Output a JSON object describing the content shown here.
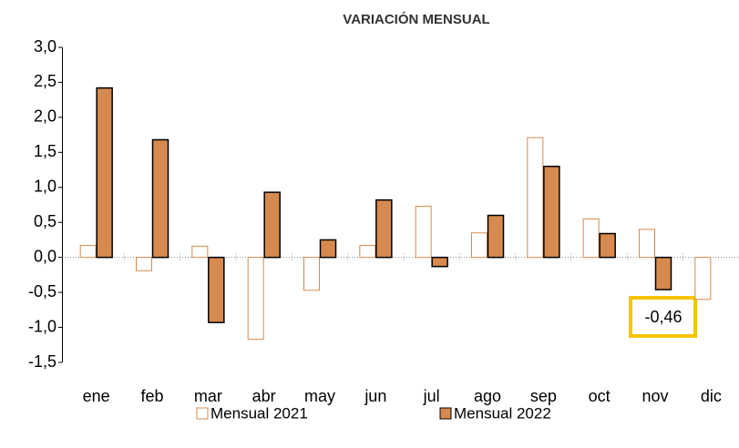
{
  "chart_data": {
    "type": "bar",
    "title": "VARIACIÓN MENSUAL",
    "categories": [
      "ene",
      "feb",
      "mar",
      "abr",
      "may",
      "jun",
      "jul",
      "ago",
      "sep",
      "oct",
      "nov",
      "dic"
    ],
    "series": [
      {
        "name": "Mensual 2021",
        "color": "#d68a4f",
        "filled": false,
        "values": [
          0.17,
          -0.19,
          0.16,
          -1.17,
          -0.47,
          0.17,
          0.73,
          0.35,
          1.71,
          0.55,
          0.4,
          -0.6
        ]
      },
      {
        "name": "Mensual 2022",
        "color": "#d68a4f",
        "edgecolor": "#000000",
        "filled": true,
        "values": [
          2.42,
          1.68,
          -0.93,
          0.93,
          0.25,
          0.82,
          -0.13,
          0.6,
          1.3,
          0.34,
          -0.46,
          null
        ],
        "value_labels": [
          null,
          null,
          null,
          null,
          null,
          null,
          null,
          null,
          null,
          null,
          "-0,46",
          null
        ]
      }
    ],
    "ylim": [
      -1.5,
      3.0
    ],
    "yticks": [
      {
        "value": -1.5,
        "label": "-1,5"
      },
      {
        "value": -1.0,
        "label": "-1,0"
      },
      {
        "value": -0.5,
        "label": "-0,5"
      },
      {
        "value": 0,
        "label": "0,0"
      },
      {
        "value": 0.5,
        "label": "0,5"
      },
      {
        "value": 1.0,
        "label": "1,0"
      },
      {
        "value": 1.5,
        "label": "1,5"
      },
      {
        "value": 2.0,
        "label": "2,0"
      },
      {
        "value": 2.5,
        "label": "2,5"
      },
      {
        "value": 3.0,
        "label": "3,0"
      }
    ],
    "legend": "bottom",
    "highlight_color": "#f5c400"
  }
}
